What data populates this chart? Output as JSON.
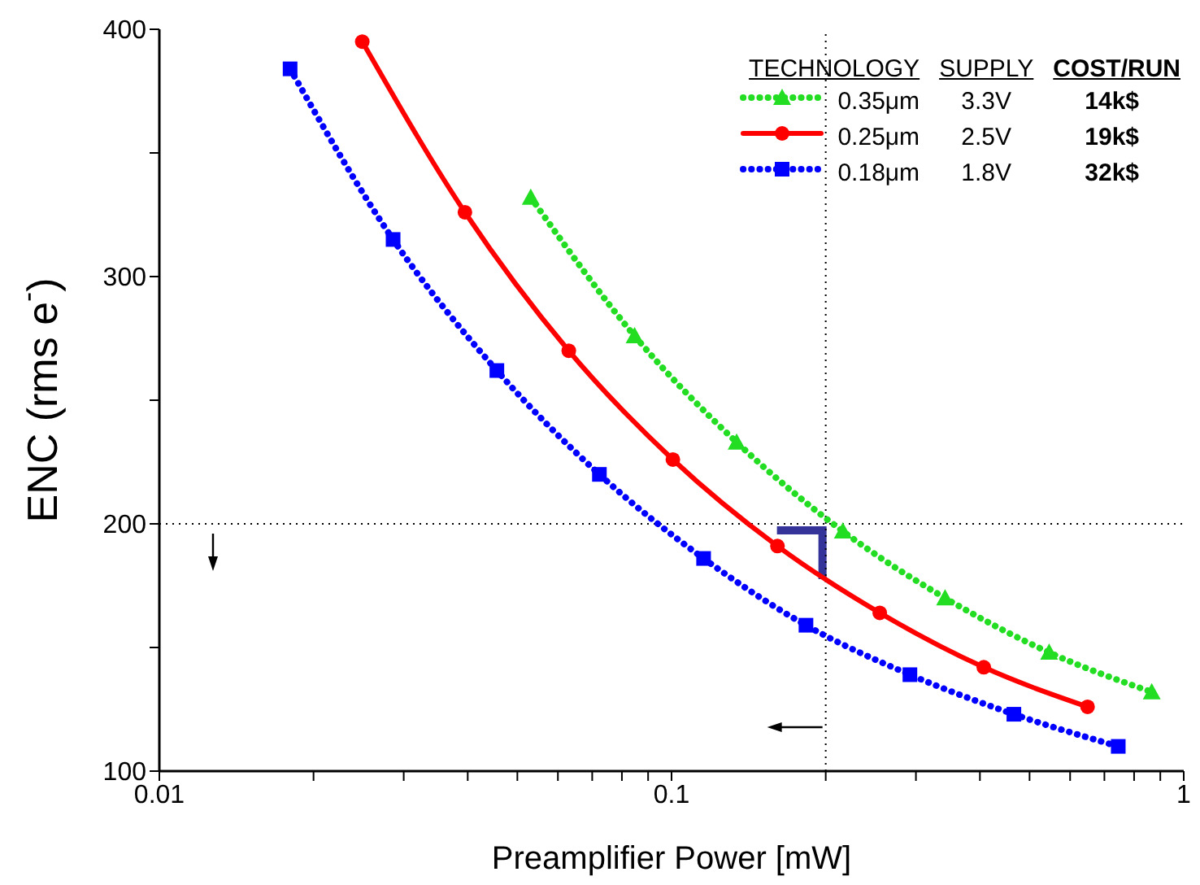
{
  "chart_data": {
    "type": "line",
    "xlabel": "Preamplifier Power [mW]",
    "ylabel": "ENC (rms e$^{-}$)",
    "log": "x",
    "xlim": [
      0.01,
      1
    ],
    "ylim": [
      100,
      400
    ],
    "xticks": [
      0.01,
      {
        "value": 0.02,
        "label": null
      },
      {
        "value": 0.03,
        "label": null
      },
      {
        "value": 0.04,
        "label": null
      },
      {
        "value": 0.05,
        "label": null
      },
      {
        "value": 0.06,
        "label": null
      },
      {
        "value": 0.07,
        "label": null
      },
      {
        "value": 0.08,
        "label": null
      },
      {
        "value": 0.09,
        "label": null
      },
      0.1,
      {
        "value": 0.2,
        "label": null
      },
      {
        "value": 0.3,
        "label": null
      },
      {
        "value": 0.4,
        "label": null
      },
      {
        "value": 0.5,
        "label": null
      },
      {
        "value": 0.6,
        "label": null
      },
      {
        "value": 0.7,
        "label": null
      },
      {
        "value": 0.8,
        "label": null
      },
      {
        "value": 0.9,
        "label": null
      },
      1
    ],
    "yticks": [
      100,
      {
        "value": 150,
        "label": null
      },
      200,
      {
        "value": 250,
        "label": null
      },
      300,
      {
        "value": 350,
        "label": null
      },
      400
    ],
    "grid": false,
    "legend": "top right",
    "series": [
      {
        "name": "0.35μm",
        "color": "#22dd22",
        "marker": "triangle",
        "line_style": "dotted",
        "x": [
          0.0531,
          0.0847,
          0.134,
          0.216,
          0.342,
          0.546,
          0.866
        ],
        "values": [
          332,
          276,
          233,
          197,
          170,
          148,
          132
        ]
      },
      {
        "name": "0.25μm",
        "color": "#ff0000",
        "marker": "circle",
        "line_style": "solid",
        "x": [
          0.0249,
          0.0395,
          0.063,
          0.1006,
          0.161,
          0.255,
          0.407,
          0.649
        ],
        "values": [
          395,
          326,
          270,
          226,
          191,
          164,
          142,
          126
        ]
      },
      {
        "name": "0.18μm",
        "color": "#0000ff",
        "marker": "square",
        "line_style": "dotted",
        "x": [
          0.018,
          0.0286,
          0.0456,
          0.0723,
          0.1155,
          0.183,
          0.292,
          0.466,
          0.745
        ],
        "values": [
          384,
          315,
          262,
          220,
          186,
          159,
          139,
          123,
          110
        ]
      }
    ],
    "ref_lines": [
      {
        "axis": "y",
        "value": 200,
        "line_style": "dotted",
        "color": "#000000"
      },
      {
        "axis": "x",
        "value": 0.2,
        "line_style": "dotted",
        "color": "#000000"
      }
    ],
    "annotations": [
      "TECHNOLOGY",
      "SUPPLY",
      "COST/RUN",
      "3.3V",
      "14k$",
      "2.5V",
      "19k$",
      "1.8V",
      "32k$"
    ]
  }
}
